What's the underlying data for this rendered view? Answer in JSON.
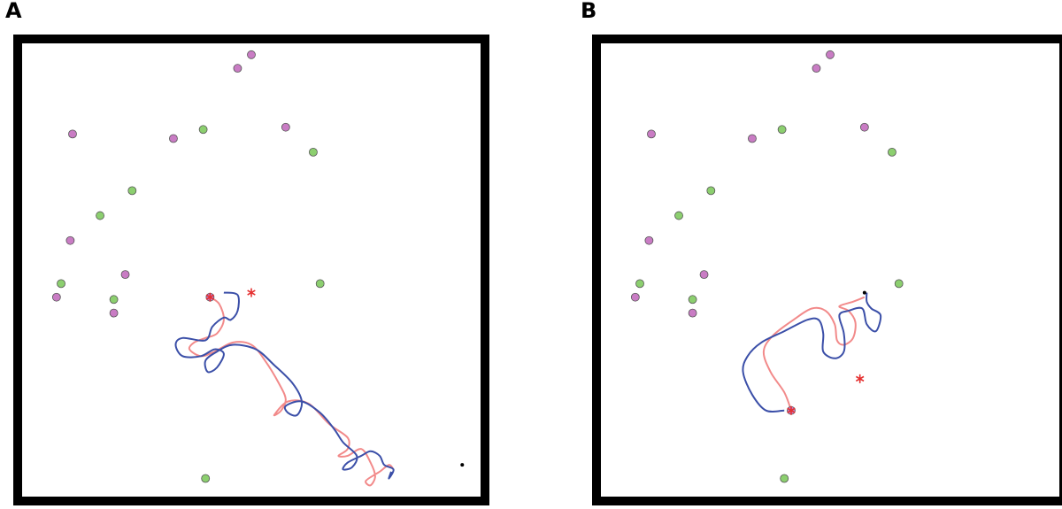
{
  "panels": [
    {
      "label": "A",
      "landmarks_purple": [
        [
          -0.06,
          0.89
        ],
        [
          -0.34,
          0.58
        ],
        [
          -0.78,
          0.6
        ],
        [
          -0.79,
          0.13
        ],
        [
          0.0,
          0.95
        ],
        [
          0.15,
          0.63
        ],
        [
          -0.55,
          -0.02
        ],
        [
          -0.85,
          -0.12
        ],
        [
          -0.6,
          -0.19
        ]
      ],
      "landmarks_green": [
        [
          -0.21,
          0.62
        ],
        [
          0.27,
          0.52
        ],
        [
          -0.52,
          0.35
        ],
        [
          -0.66,
          0.24
        ],
        [
          -0.83,
          -0.06
        ],
        [
          -0.6,
          -0.13
        ],
        [
          0.3,
          -0.06
        ],
        [
          -0.2,
          -0.92
        ]
      ],
      "start_marker": [
        -0.18,
        -0.12
      ],
      "goal_marker": [
        0.0,
        -0.1
      ],
      "end_point": [
        0.92,
        -0.86
      ],
      "path_pink": [
        [
          -0.18,
          -0.12
        ],
        [
          -0.14,
          -0.15
        ],
        [
          -0.12,
          -0.22
        ],
        [
          -0.15,
          -0.28
        ],
        [
          -0.2,
          -0.3
        ],
        [
          -0.25,
          -0.32
        ],
        [
          -0.27,
          -0.35
        ],
        [
          -0.22,
          -0.38
        ],
        [
          -0.16,
          -0.36
        ],
        [
          -0.08,
          -0.32
        ],
        [
          0.0,
          -0.33
        ],
        [
          0.06,
          -0.4
        ],
        [
          0.12,
          -0.5
        ],
        [
          0.15,
          -0.57
        ],
        [
          0.13,
          -0.62
        ],
        [
          0.1,
          -0.64
        ],
        [
          0.16,
          -0.58
        ],
        [
          0.25,
          -0.59
        ],
        [
          0.34,
          -0.68
        ],
        [
          0.42,
          -0.74
        ],
        [
          0.42,
          -0.79
        ],
        [
          0.38,
          -0.82
        ],
        [
          0.42,
          -0.82
        ],
        [
          0.48,
          -0.79
        ],
        [
          0.52,
          -0.85
        ],
        [
          0.54,
          -0.91
        ],
        [
          0.52,
          -0.95
        ],
        [
          0.5,
          -0.93
        ],
        [
          0.56,
          -0.89
        ],
        [
          0.6,
          -0.86
        ],
        [
          0.62,
          -0.88
        ]
      ],
      "path_blue": [
        [
          -0.12,
          -0.1
        ],
        [
          -0.06,
          -0.11
        ],
        [
          -0.06,
          -0.18
        ],
        [
          -0.09,
          -0.22
        ],
        [
          -0.12,
          -0.21
        ],
        [
          -0.17,
          -0.25
        ],
        [
          -0.2,
          -0.31
        ],
        [
          -0.3,
          -0.3
        ],
        [
          -0.33,
          -0.33
        ],
        [
          -0.3,
          -0.38
        ],
        [
          -0.22,
          -0.38
        ],
        [
          -0.16,
          -0.35
        ],
        [
          -0.12,
          -0.37
        ],
        [
          -0.15,
          -0.43
        ],
        [
          -0.19,
          -0.45
        ],
        [
          -0.2,
          -0.4
        ],
        [
          -0.15,
          -0.36
        ],
        [
          -0.08,
          -0.33
        ],
        [
          0.02,
          -0.35
        ],
        [
          0.1,
          -0.42
        ],
        [
          0.18,
          -0.5
        ],
        [
          0.22,
          -0.58
        ],
        [
          0.2,
          -0.64
        ],
        [
          0.16,
          -0.63
        ],
        [
          0.15,
          -0.6
        ],
        [
          0.22,
          -0.58
        ],
        [
          0.3,
          -0.63
        ],
        [
          0.36,
          -0.7
        ],
        [
          0.4,
          -0.76
        ],
        [
          0.46,
          -0.82
        ],
        [
          0.44,
          -0.87
        ],
        [
          0.4,
          -0.88
        ],
        [
          0.42,
          -0.85
        ],
        [
          0.48,
          -0.82
        ],
        [
          0.52,
          -0.8
        ],
        [
          0.56,
          -0.82
        ],
        [
          0.58,
          -0.86
        ],
        [
          0.62,
          -0.88
        ],
        [
          0.6,
          -0.92
        ],
        [
          0.61,
          -0.89
        ]
      ]
    },
    {
      "label": "B",
      "landmarks_purple": [
        [
          -0.06,
          0.89
        ],
        [
          -0.34,
          0.58
        ],
        [
          -0.78,
          0.6
        ],
        [
          -0.79,
          0.13
        ],
        [
          0.0,
          0.95
        ],
        [
          0.15,
          0.63
        ],
        [
          -0.55,
          -0.02
        ],
        [
          -0.85,
          -0.12
        ],
        [
          -0.6,
          -0.19
        ]
      ],
      "landmarks_green": [
        [
          -0.21,
          0.62
        ],
        [
          0.27,
          0.52
        ],
        [
          -0.52,
          0.35
        ],
        [
          -0.66,
          0.24
        ],
        [
          -0.83,
          -0.06
        ],
        [
          -0.6,
          -0.13
        ],
        [
          0.3,
          -0.06
        ],
        [
          -0.2,
          -0.92
        ]
      ],
      "start_marker": [
        -0.17,
        -0.62
      ],
      "goal_marker": [
        0.13,
        -0.48
      ],
      "end_point": [
        0.15,
        -0.1
      ],
      "path_pink": [
        [
          -0.17,
          -0.62
        ],
        [
          -0.2,
          -0.54
        ],
        [
          -0.26,
          -0.45
        ],
        [
          -0.29,
          -0.36
        ],
        [
          -0.25,
          -0.29
        ],
        [
          -0.16,
          -0.22
        ],
        [
          -0.08,
          -0.17
        ],
        [
          -0.02,
          -0.18
        ],
        [
          0.02,
          -0.24
        ],
        [
          0.03,
          -0.31
        ],
        [
          0.06,
          -0.33
        ],
        [
          0.1,
          -0.3
        ],
        [
          0.11,
          -0.23
        ],
        [
          0.08,
          -0.18
        ],
        [
          0.04,
          -0.16
        ],
        [
          0.1,
          -0.14
        ],
        [
          0.15,
          -0.12
        ]
      ],
      "path_blue": [
        [
          -0.2,
          -0.62
        ],
        [
          -0.28,
          -0.62
        ],
        [
          -0.34,
          -0.55
        ],
        [
          -0.38,
          -0.45
        ],
        [
          -0.36,
          -0.38
        ],
        [
          -0.3,
          -0.32
        ],
        [
          -0.2,
          -0.27
        ],
        [
          -0.1,
          -0.22
        ],
        [
          -0.05,
          -0.22
        ],
        [
          -0.03,
          -0.28
        ],
        [
          -0.03,
          -0.36
        ],
        [
          0.02,
          -0.39
        ],
        [
          0.06,
          -0.36
        ],
        [
          0.06,
          -0.28
        ],
        [
          0.04,
          -0.2
        ],
        [
          0.08,
          -0.18
        ],
        [
          0.14,
          -0.17
        ],
        [
          0.16,
          -0.24
        ],
        [
          0.2,
          -0.27
        ],
        [
          0.22,
          -0.2
        ],
        [
          0.18,
          -0.17
        ],
        [
          0.16,
          -0.14
        ],
        [
          0.16,
          -0.1
        ]
      ]
    }
  ],
  "colors": {
    "frame": "#000000",
    "landmark_purple": "#c97cc4",
    "landmark_green": "#8ccf6f",
    "landmark_stroke": "#555555",
    "path_pink": "#f28a8a",
    "path_blue": "#3b4fa8",
    "goal_marker": "#e53030"
  }
}
